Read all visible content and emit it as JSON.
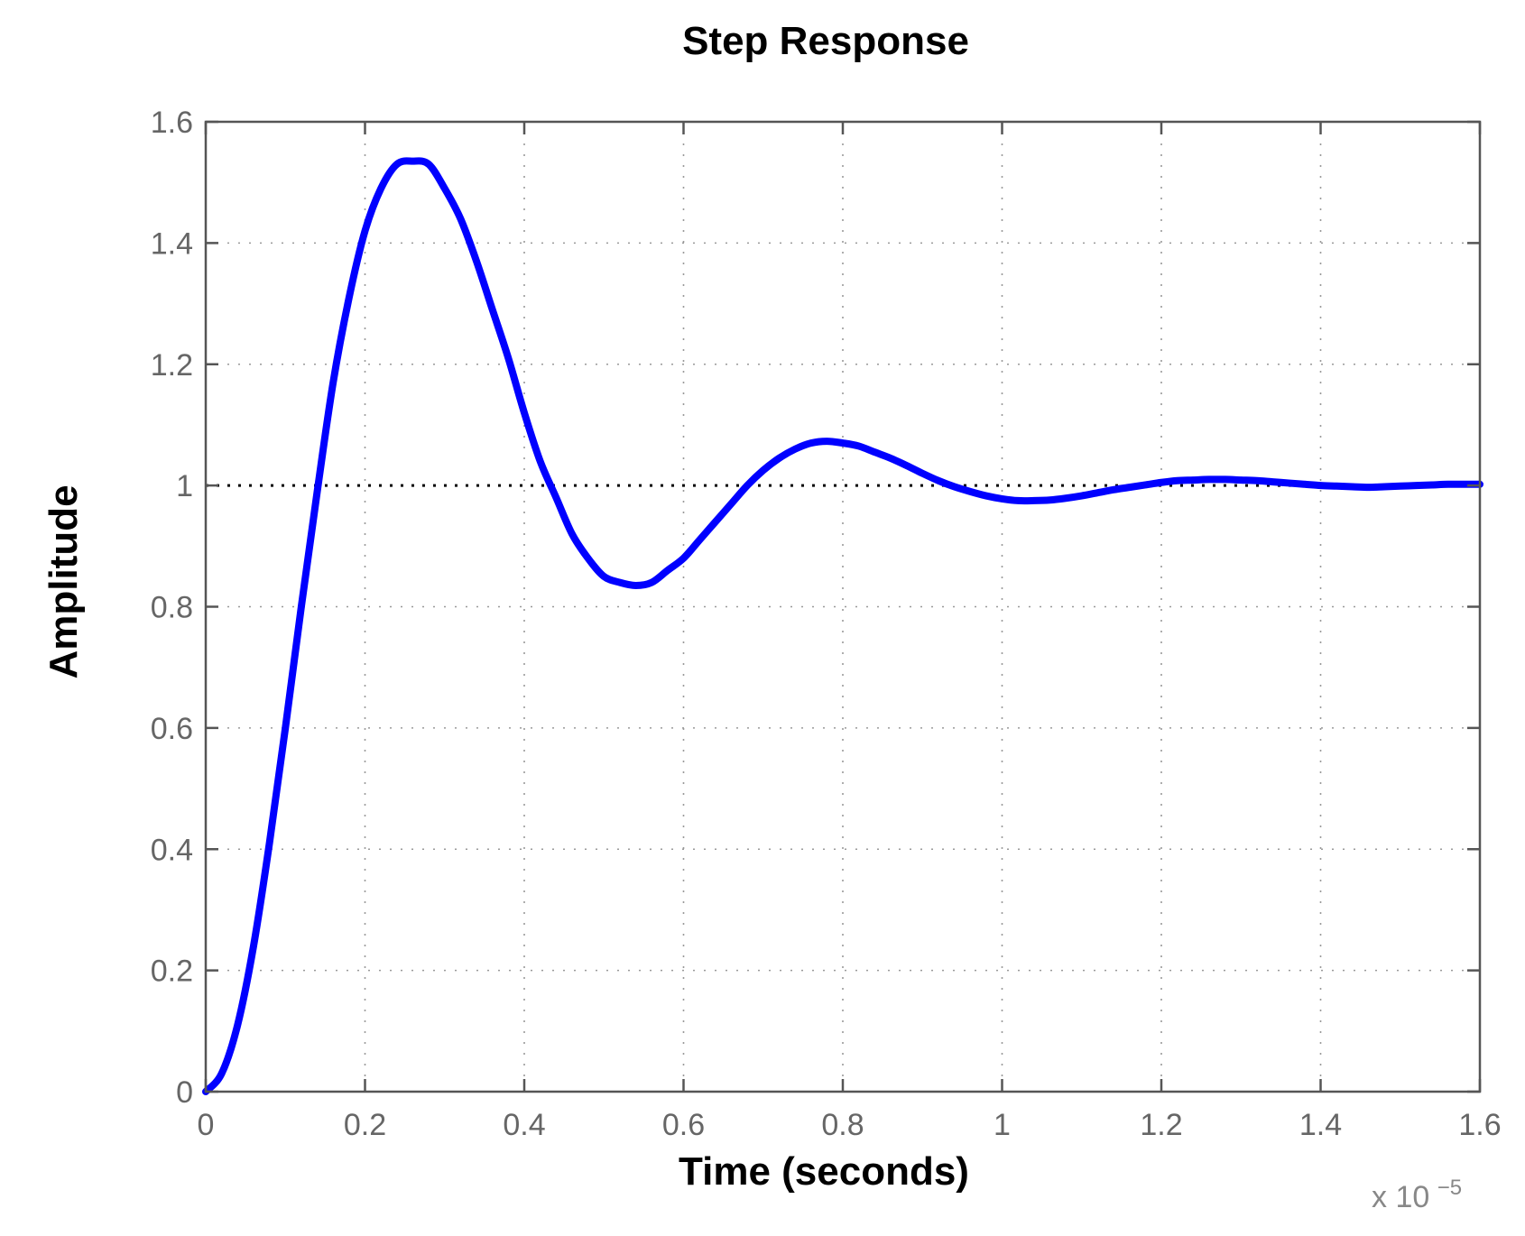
{
  "chart_data": {
    "type": "line",
    "title": "Step Response",
    "xlabel": "Time (seconds)",
    "ylabel": "Amplitude",
    "x_multiplier": {
      "prefix": "x 10",
      "exponent": "−5"
    },
    "xlim": [
      0,
      1.6
    ],
    "ylim": [
      0,
      1.6
    ],
    "xticks": [
      0,
      0.2,
      0.4,
      0.6,
      0.8,
      1.0,
      1.2,
      1.4,
      1.6
    ],
    "xtick_labels": [
      "0",
      "0.2",
      "0.4",
      "0.6",
      "0.8",
      "1",
      "1.2",
      "1.4",
      "1.6"
    ],
    "yticks": [
      0,
      0.2,
      0.4,
      0.6,
      0.8,
      1.0,
      1.2,
      1.4,
      1.6
    ],
    "ytick_labels": [
      "0",
      "0.2",
      "0.4",
      "0.6",
      "0.8",
      "1",
      "1.2",
      "1.4",
      "1.6"
    ],
    "grid": true,
    "reference_line": {
      "y": 1.0,
      "color": "#000000",
      "style": "dotted"
    },
    "series": [
      {
        "color": "#0000ff",
        "x": [
          0,
          0.02,
          0.04,
          0.06,
          0.08,
          0.1,
          0.12,
          0.14,
          0.16,
          0.18,
          0.2,
          0.22,
          0.24,
          0.26,
          0.28,
          0.3,
          0.32,
          0.34,
          0.36,
          0.38,
          0.4,
          0.42,
          0.44,
          0.46,
          0.48,
          0.5,
          0.52,
          0.54,
          0.56,
          0.58,
          0.6,
          0.62,
          0.64,
          0.66,
          0.68,
          0.7,
          0.72,
          0.74,
          0.76,
          0.78,
          0.8,
          0.82,
          0.84,
          0.86,
          0.88,
          0.9,
          0.92,
          0.94,
          0.96,
          0.98,
          1.0,
          1.02,
          1.04,
          1.06,
          1.08,
          1.1,
          1.12,
          1.14,
          1.16,
          1.18,
          1.2,
          1.22,
          1.24,
          1.26,
          1.28,
          1.3,
          1.32,
          1.34,
          1.36,
          1.38,
          1.4,
          1.42,
          1.44,
          1.46,
          1.48,
          1.5,
          1.52,
          1.54,
          1.56,
          1.58,
          1.6
        ],
        "y": [
          0.0,
          0.03,
          0.11,
          0.24,
          0.41,
          0.6,
          0.8,
          0.99,
          1.17,
          1.31,
          1.42,
          1.49,
          1.53,
          1.535,
          1.53,
          1.49,
          1.44,
          1.37,
          1.29,
          1.21,
          1.12,
          1.04,
          0.98,
          0.92,
          0.88,
          0.85,
          0.84,
          0.835,
          0.84,
          0.86,
          0.88,
          0.91,
          0.94,
          0.97,
          1.0,
          1.025,
          1.045,
          1.06,
          1.07,
          1.073,
          1.07,
          1.065,
          1.055,
          1.045,
          1.033,
          1.02,
          1.008,
          0.998,
          0.99,
          0.983,
          0.978,
          0.975,
          0.975,
          0.976,
          0.979,
          0.983,
          0.988,
          0.993,
          0.997,
          1.001,
          1.005,
          1.008,
          1.009,
          1.01,
          1.01,
          1.009,
          1.008,
          1.006,
          1.004,
          1.002,
          1.0,
          0.999,
          0.998,
          0.997,
          0.998,
          0.999,
          1.0,
          1.001,
          1.002,
          1.002,
          1.002
        ]
      }
    ]
  }
}
